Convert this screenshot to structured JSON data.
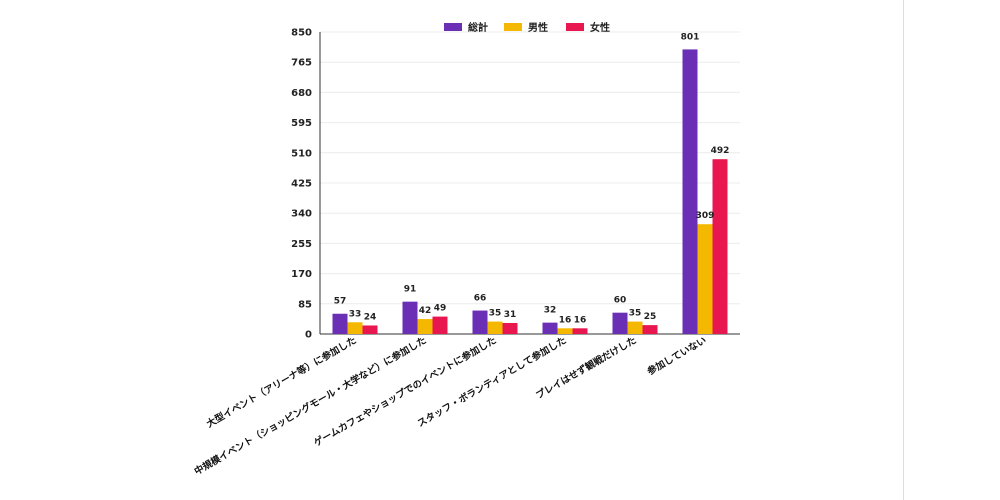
{
  "chart_data": {
    "type": "bar",
    "categories": [
      "大型イベント（アリーナ等）に参加した",
      "中規模イベント（ショッピングモール・大学など）に参加した",
      "ゲームカフェやショップでのイベントに参加した",
      "スタッフ・ボランティアとして参加した",
      "プレイはせず観戦だけした",
      "参加していない"
    ],
    "series": [
      {
        "name": "総計",
        "color": "#6a2fb5",
        "values": [
          57,
          91,
          66,
          32,
          60,
          801
        ]
      },
      {
        "name": "男性",
        "color": "#f5b800",
        "values": [
          33,
          42,
          35,
          16,
          35,
          309
        ]
      },
      {
        "name": "女性",
        "color": "#e8174f",
        "values": [
          24,
          49,
          31,
          16,
          25,
          492
        ]
      }
    ],
    "ylim": [
      0,
      850
    ],
    "yticks": [
      0,
      85,
      170,
      255,
      340,
      425,
      510,
      595,
      680,
      765,
      850
    ],
    "grid": true,
    "legend": "top-center",
    "title": "",
    "xlabel": "",
    "ylabel": ""
  }
}
